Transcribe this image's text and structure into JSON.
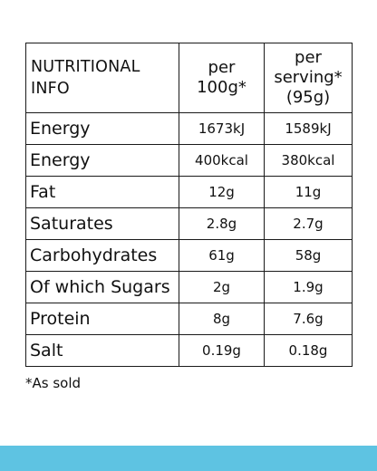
{
  "table": {
    "headers": {
      "name": "NUTRITIONAL\nINFO",
      "per_100g": "per\n100g*",
      "per_serving": "per\nserving*\n(95g)"
    },
    "rows": [
      {
        "name": "Energy",
        "per_100g": "1673kJ",
        "per_serving": "1589kJ"
      },
      {
        "name": "Energy",
        "per_100g": "400kcal",
        "per_serving": "380kcal"
      },
      {
        "name": "Fat",
        "per_100g": "12g",
        "per_serving": "11g"
      },
      {
        "name": "Saturates",
        "per_100g": "2.8g",
        "per_serving": "2.7g"
      },
      {
        "name": "Carbohydrates",
        "per_100g": "61g",
        "per_serving": "58g"
      },
      {
        "name": "Of which Sugars",
        "per_100g": "2g",
        "per_serving": "1.9g"
      },
      {
        "name": "Protein",
        "per_100g": "8g",
        "per_serving": "7.6g"
      },
      {
        "name": "Salt",
        "per_100g": "0.19g",
        "per_serving": "0.18g"
      }
    ]
  },
  "footnote": "*As sold",
  "colors": {
    "accent_band": "#5ec3e2",
    "border": "#1a1a1a"
  }
}
